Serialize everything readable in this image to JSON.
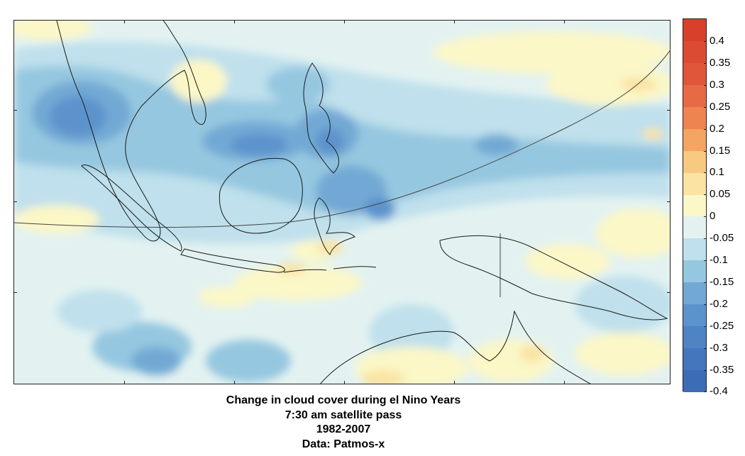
{
  "map": {
    "region": "Maritime Continent (Indonesia, Philippines, New Guinea, northern Australia)",
    "field": "Change in cloud cover",
    "background_color": "#e3f2f1"
  },
  "colorbar": {
    "levels": [
      {
        "label": "0.4",
        "color": "#d8402c"
      },
      {
        "label": "0.35",
        "color": "#dc4a33"
      },
      {
        "label": "0.3",
        "color": "#e0563b"
      },
      {
        "label": "0.25",
        "color": "#e66a45"
      },
      {
        "label": "0.2",
        "color": "#ee8450"
      },
      {
        "label": "0.15",
        "color": "#f4a463"
      },
      {
        "label": "0.1",
        "color": "#f8c981"
      },
      {
        "label": "0.05",
        "color": "#fae3a3"
      },
      {
        "label": "0",
        "color": "#fbf7c7"
      },
      {
        "label": "-0.05",
        "color": "#e3f2f1"
      },
      {
        "label": "-0.1",
        "color": "#bfe0ec"
      },
      {
        "label": "-0.15",
        "color": "#95c7e0"
      },
      {
        "label": "-0.2",
        "color": "#72a9d4"
      },
      {
        "label": "-0.25",
        "color": "#5c93cc"
      },
      {
        "label": "-0.3",
        "color": "#4e83c4"
      },
      {
        "label": "-0.35",
        "color": "#4476bd"
      },
      {
        "label": "-0.4",
        "color": "#3d6cb6"
      }
    ]
  },
  "caption": {
    "line1": "Change in cloud cover during el Nino Years",
    "line2": "7:30 am satellite pass",
    "line3": "1982-2007",
    "line4": "Data: Patmos-x"
  }
}
